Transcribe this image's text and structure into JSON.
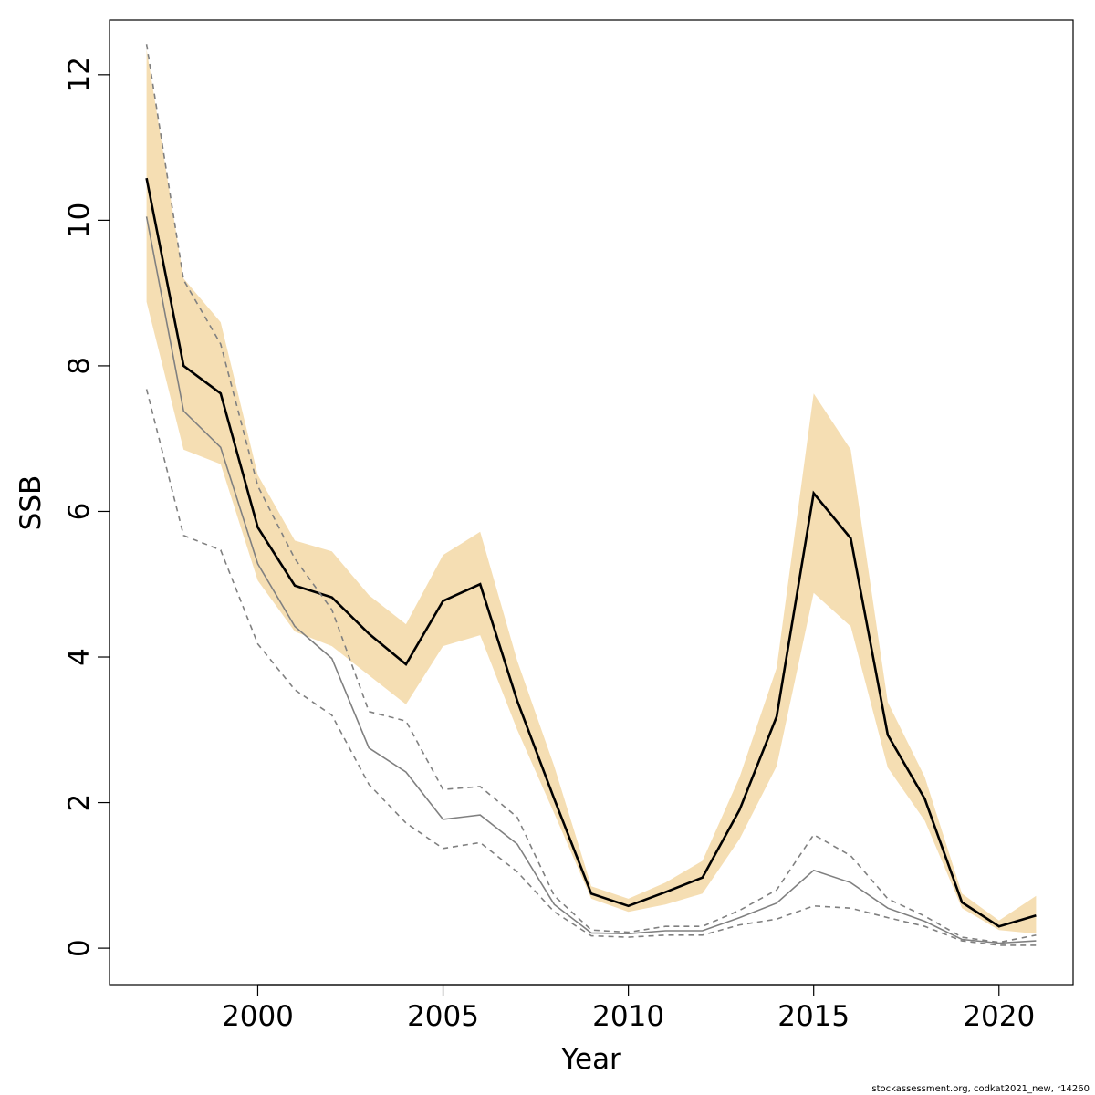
{
  "chart_data": {
    "type": "line",
    "xlabel": "Year",
    "ylabel": "SSB",
    "xlim": [
      1996.0,
      2022.0
    ],
    "ylim": [
      -0.5,
      12.75
    ],
    "x_ticks": [
      2000,
      2005,
      2010,
      2015,
      2020
    ],
    "y_ticks": [
      0,
      2,
      4,
      6,
      8,
      10,
      12
    ],
    "years": [
      1997,
      1998,
      1999,
      2000,
      2001,
      2002,
      2003,
      2004,
      2005,
      2006,
      2007,
      2008,
      2009,
      2010,
      2011,
      2012,
      2013,
      2014,
      2015,
      2016,
      2017,
      2018,
      2019,
      2020,
      2021
    ],
    "band_color": "#f5deb3",
    "series": [
      {
        "style": "ci-band",
        "lower": [
          8.88,
          6.85,
          6.65,
          5.05,
          4.35,
          4.15,
          3.75,
          3.35,
          4.15,
          4.3,
          3.0,
          1.85,
          0.68,
          0.5,
          0.6,
          0.75,
          1.5,
          2.5,
          4.88,
          4.42,
          2.48,
          1.75,
          0.55,
          0.25,
          0.2
        ],
        "upper": [
          12.35,
          9.2,
          8.6,
          6.5,
          5.6,
          5.45,
          4.85,
          4.45,
          5.4,
          5.72,
          3.95,
          2.5,
          0.85,
          0.68,
          0.9,
          1.2,
          2.35,
          3.85,
          7.62,
          6.85,
          3.38,
          2.35,
          0.75,
          0.38,
          0.72
        ],
        "color": "#f5deb3"
      },
      {
        "style": "estimate",
        "values": [
          10.58,
          8.0,
          7.62,
          5.78,
          4.98,
          4.82,
          4.32,
          3.9,
          4.77,
          5.0,
          3.4,
          2.05,
          0.75,
          0.58,
          0.77,
          0.97,
          1.9,
          3.18,
          6.25,
          5.63,
          2.93,
          2.05,
          0.63,
          0.3,
          0.45
        ],
        "color": "#000000"
      },
      {
        "style": "comparison",
        "values": [
          10.05,
          7.38,
          6.88,
          5.28,
          4.42,
          3.98,
          2.75,
          2.42,
          1.77,
          1.83,
          1.43,
          0.6,
          0.21,
          0.2,
          0.24,
          0.24,
          0.42,
          0.62,
          1.07,
          0.9,
          0.55,
          0.37,
          0.12,
          0.07,
          0.1
        ],
        "color": "#808080"
      },
      {
        "style": "comparison-upper",
        "values": [
          12.42,
          9.18,
          8.3,
          6.35,
          5.35,
          4.65,
          3.25,
          3.12,
          2.18,
          2.22,
          1.8,
          0.72,
          0.25,
          0.22,
          0.3,
          0.3,
          0.52,
          0.8,
          1.56,
          1.27,
          0.68,
          0.44,
          0.15,
          0.08,
          0.18
        ],
        "color": "#808080"
      },
      {
        "style": "comparison-lower",
        "values": [
          7.68,
          5.67,
          5.47,
          4.18,
          3.55,
          3.2,
          2.25,
          1.72,
          1.37,
          1.45,
          1.05,
          0.5,
          0.17,
          0.15,
          0.18,
          0.18,
          0.32,
          0.4,
          0.58,
          0.55,
          0.42,
          0.3,
          0.1,
          0.04,
          0.04
        ],
        "color": "#808080"
      }
    ]
  },
  "footer": "stockassessment.org, codkat2021_new, r14260"
}
